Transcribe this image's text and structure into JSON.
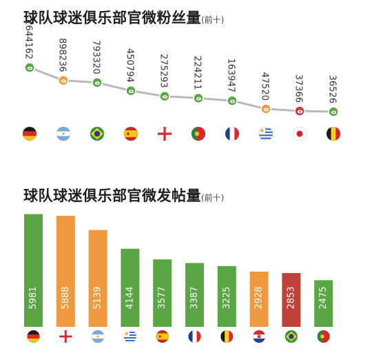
{
  "chart_data": [
    {
      "type": "line",
      "title": "球队球迷俱乐部官微粉丝量",
      "subtitle": "(前十)",
      "categories": [
        "Germany",
        "Argentina",
        "Brazil",
        "Spain",
        "England",
        "Portugal",
        "France",
        "Uruguay",
        "Japan",
        "Belgium"
      ],
      "values": [
        1644162,
        898236,
        793320,
        450794,
        275293,
        224211,
        163947,
        47520,
        37366,
        36526
      ],
      "value_labels": [
        "1644162",
        "898236",
        "793320",
        "450794",
        "275293",
        "224211",
        "163947",
        "47520",
        "37366",
        "36526"
      ],
      "marker_colors": [
        "#5aa544",
        "#ef9a3e",
        "#5aa544",
        "#5aa544",
        "#5aa544",
        "#5aa544",
        "#5aa544",
        "#ef9a3e",
        "#c0403b",
        "#5aa544"
      ],
      "line_color": "#b9b9b9",
      "grid": false
    },
    {
      "type": "bar",
      "title": "球队球迷俱乐部官微发帖量",
      "subtitle": "(前十)",
      "categories": [
        "Germany",
        "England",
        "Argentina",
        "Uruguay",
        "Spain",
        "France",
        "Belgium",
        "Croatia",
        "Brazil",
        "Portugal"
      ],
      "values": [
        5981,
        5888,
        5139,
        4144,
        3577,
        3387,
        3225,
        2928,
        2853,
        2475
      ],
      "value_labels": [
        "5981",
        "5888",
        "5139",
        "4144",
        "3577",
        "3387",
        "3225",
        "2928",
        "2853",
        "2475"
      ],
      "bar_colors": [
        "#5aa544",
        "#ef9a3e",
        "#ef9a3e",
        "#5aa544",
        "#5aa544",
        "#5aa544",
        "#5aa544",
        "#ef9a3e",
        "#c0403b",
        "#5aa544"
      ],
      "ylim": [
        0,
        6000
      ],
      "grid": false
    }
  ]
}
